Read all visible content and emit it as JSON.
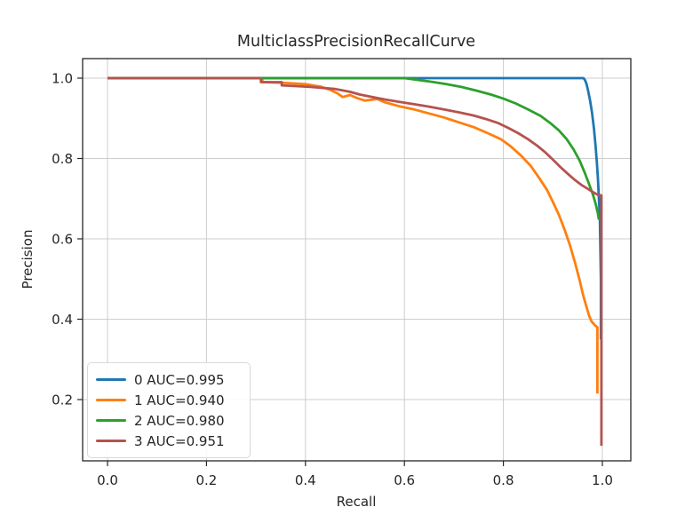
{
  "figure": {
    "background": "#ffffff",
    "text_color": "#262626",
    "grid_color": "#cdcdcd",
    "spine_color": "#262626"
  },
  "chart_data": {
    "type": "line",
    "title": "MulticlassPrecisionRecallCurve",
    "xlabel": "Recall",
    "ylabel": "Precision",
    "xlim": [
      -0.0503,
      1.0575
    ],
    "ylim": [
      0.0475,
      1.0486
    ],
    "x_ticks": [
      0.0,
      0.2,
      0.4,
      0.6,
      0.8,
      1.0
    ],
    "y_ticks": [
      0.2,
      0.4,
      0.6,
      0.8,
      1.0
    ],
    "grid": true,
    "legend_position": "lower left",
    "series": [
      {
        "name": "0 AUC=0.995",
        "class_index": "0",
        "auc": 0.995,
        "color": "#1f77b4",
        "points": [
          [
            0,
            1
          ],
          [
            0.955,
            1
          ],
          [
            0.962,
            1
          ],
          [
            0.965,
            0.995
          ],
          [
            0.968,
            0.985
          ],
          [
            0.971,
            0.97
          ],
          [
            0.975,
            0.945
          ],
          [
            0.979,
            0.915
          ],
          [
            0.983,
            0.875
          ],
          [
            0.986,
            0.835
          ],
          [
            0.989,
            0.79
          ],
          [
            0.991,
            0.75
          ],
          [
            0.993,
            0.7
          ],
          [
            0.995,
            0.645
          ],
          [
            0.996,
            0.58
          ],
          [
            0.997,
            0.5
          ],
          [
            0.997,
            0.35
          ]
        ]
      },
      {
        "name": "1 AUC=0.940",
        "class_index": "1",
        "auc": 0.94,
        "color": "#ff7f0e",
        "points": [
          [
            0,
            1
          ],
          [
            0.313,
            1
          ],
          [
            0.313,
            0.99
          ],
          [
            0.36,
            0.988
          ],
          [
            0.4,
            0.985
          ],
          [
            0.43,
            0.979
          ],
          [
            0.45,
            0.971
          ],
          [
            0.465,
            0.962
          ],
          [
            0.475,
            0.953
          ],
          [
            0.49,
            0.958
          ],
          [
            0.505,
            0.95
          ],
          [
            0.52,
            0.944
          ],
          [
            0.545,
            0.948
          ],
          [
            0.56,
            0.94
          ],
          [
            0.59,
            0.93
          ],
          [
            0.62,
            0.922
          ],
          [
            0.65,
            0.912
          ],
          [
            0.68,
            0.902
          ],
          [
            0.71,
            0.89
          ],
          [
            0.74,
            0.878
          ],
          [
            0.77,
            0.862
          ],
          [
            0.795,
            0.848
          ],
          [
            0.815,
            0.83
          ],
          [
            0.835,
            0.808
          ],
          [
            0.855,
            0.782
          ],
          [
            0.872,
            0.752
          ],
          [
            0.888,
            0.722
          ],
          [
            0.9,
            0.692
          ],
          [
            0.912,
            0.66
          ],
          [
            0.924,
            0.622
          ],
          [
            0.935,
            0.582
          ],
          [
            0.945,
            0.54
          ],
          [
            0.954,
            0.497
          ],
          [
            0.961,
            0.46
          ],
          [
            0.968,
            0.43
          ],
          [
            0.973,
            0.41
          ],
          [
            0.978,
            0.395
          ],
          [
            0.985,
            0.385
          ],
          [
            0.99,
            0.38
          ],
          [
            0.99,
            0.215
          ]
        ]
      },
      {
        "name": "2 AUC=0.980",
        "class_index": "2",
        "auc": 0.98,
        "color": "#2ca02c",
        "points": [
          [
            0,
            1
          ],
          [
            0.6,
            1
          ],
          [
            0.625,
            0.996
          ],
          [
            0.655,
            0.991
          ],
          [
            0.685,
            0.985
          ],
          [
            0.715,
            0.978
          ],
          [
            0.745,
            0.969
          ],
          [
            0.775,
            0.959
          ],
          [
            0.8,
            0.949
          ],
          [
            0.825,
            0.937
          ],
          [
            0.85,
            0.922
          ],
          [
            0.875,
            0.906
          ],
          [
            0.895,
            0.888
          ],
          [
            0.912,
            0.87
          ],
          [
            0.928,
            0.848
          ],
          [
            0.942,
            0.822
          ],
          [
            0.954,
            0.795
          ],
          [
            0.964,
            0.766
          ],
          [
            0.973,
            0.737
          ],
          [
            0.981,
            0.71
          ],
          [
            0.987,
            0.685
          ],
          [
            0.991,
            0.663
          ],
          [
            0.993,
            0.648
          ]
        ]
      },
      {
        "name": "3 AUC=0.951",
        "class_index": "3",
        "auc": 0.951,
        "color": "#b5524f",
        "points": [
          [
            0,
            1
          ],
          [
            0.31,
            1
          ],
          [
            0.31,
            0.99
          ],
          [
            0.352,
            0.99
          ],
          [
            0.352,
            0.982
          ],
          [
            0.41,
            0.978
          ],
          [
            0.46,
            0.973
          ],
          [
            0.49,
            0.966
          ],
          [
            0.51,
            0.959
          ],
          [
            0.535,
            0.953
          ],
          [
            0.56,
            0.947
          ],
          [
            0.59,
            0.941
          ],
          [
            0.62,
            0.935
          ],
          [
            0.65,
            0.929
          ],
          [
            0.68,
            0.922
          ],
          [
            0.71,
            0.915
          ],
          [
            0.74,
            0.907
          ],
          [
            0.765,
            0.898
          ],
          [
            0.79,
            0.888
          ],
          [
            0.81,
            0.876
          ],
          [
            0.83,
            0.863
          ],
          [
            0.85,
            0.848
          ],
          [
            0.868,
            0.832
          ],
          [
            0.885,
            0.815
          ],
          [
            0.9,
            0.797
          ],
          [
            0.915,
            0.779
          ],
          [
            0.93,
            0.762
          ],
          [
            0.945,
            0.746
          ],
          [
            0.958,
            0.734
          ],
          [
            0.97,
            0.725
          ],
          [
            0.98,
            0.717
          ],
          [
            0.99,
            0.71
          ],
          [
            0.998,
            0.708
          ],
          [
            0.998,
            0.085
          ]
        ]
      }
    ]
  }
}
